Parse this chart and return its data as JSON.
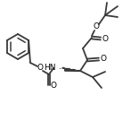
{
  "figsize": [
    1.56,
    1.45
  ],
  "dpi": 100,
  "lc": "#3a3a3a",
  "lw": 1.3,
  "xlim": [
    0,
    156
  ],
  "ylim": [
    0,
    145
  ]
}
